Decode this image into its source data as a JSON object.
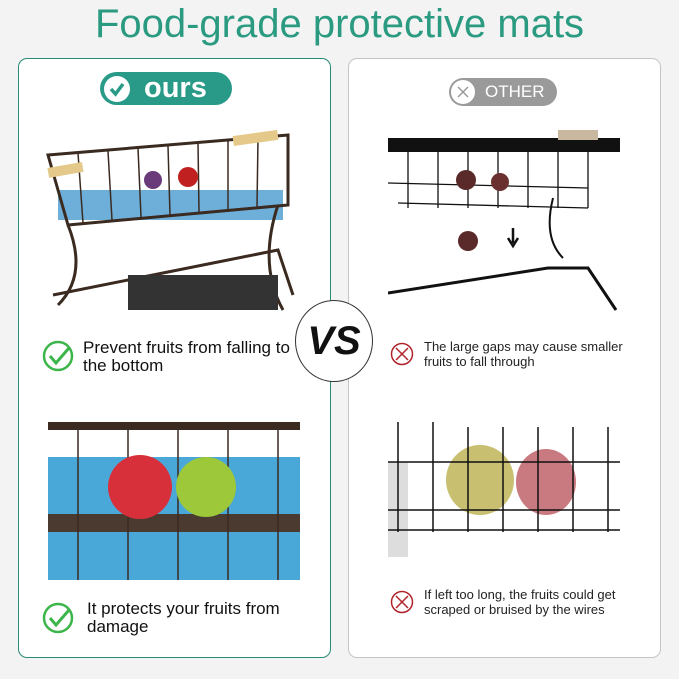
{
  "title": "Food-grade protective mats",
  "colors": {
    "accent": "#2a9a80",
    "ours_badge": "#2a9a88",
    "other_badge": "#9a9a9a",
    "check": "#3cb54a",
    "cross": "#b0222a"
  },
  "left": {
    "badge": {
      "icon": "check-circle-icon",
      "label": "ours"
    },
    "points": [
      {
        "icon": "check-icon",
        "text": "Prevent fruits from falling to the bottom"
      },
      {
        "icon": "check-icon",
        "text": "It protects your fruits from damage"
      }
    ]
  },
  "vs_label": "VS",
  "right": {
    "badge": {
      "icon": "x-circle-icon",
      "label": "OTHER"
    },
    "points": [
      {
        "icon": "x-circle-icon",
        "text": "The large gaps may cause smaller fruits to fall through"
      },
      {
        "icon": "x-circle-icon",
        "text": "If left too long, the fruits could get scraped or bruised by the wires"
      }
    ]
  }
}
